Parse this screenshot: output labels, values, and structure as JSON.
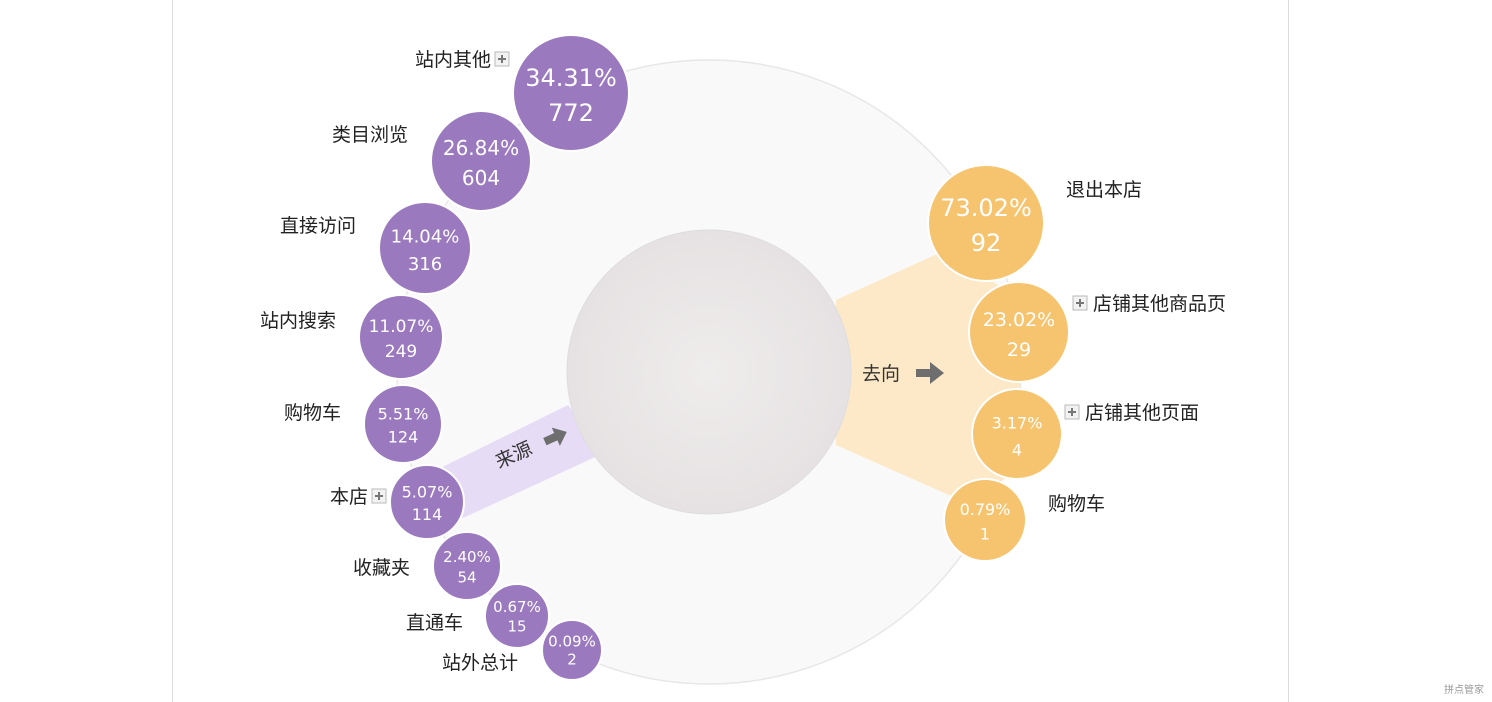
{
  "chart_data": {
    "type": "bubble-flow",
    "center_label": "",
    "sources": {
      "arrow_label": "来源",
      "color": "#9b79bf",
      "band_color": "#e7dcf6",
      "items": [
        {
          "name": "站内其他",
          "percent": "34.31%",
          "count": "772",
          "value": 34.31,
          "expandable": true
        },
        {
          "name": "类目浏览",
          "percent": "26.84%",
          "count": "604",
          "value": 26.84,
          "expandable": false
        },
        {
          "name": "直接访问",
          "percent": "14.04%",
          "count": "316",
          "value": 14.04,
          "expandable": false
        },
        {
          "name": "站内搜索",
          "percent": "11.07%",
          "count": "249",
          "value": 11.07,
          "expandable": false
        },
        {
          "name": "购物车",
          "percent": "5.51%",
          "count": "124",
          "value": 5.51,
          "expandable": false
        },
        {
          "name": "本店",
          "percent": "5.07%",
          "count": "114",
          "value": 5.07,
          "expandable": true
        },
        {
          "name": "收藏夹",
          "percent": "2.40%",
          "count": "54",
          "value": 2.4,
          "expandable": false
        },
        {
          "name": "直通车",
          "percent": "0.67%",
          "count": "15",
          "value": 0.67,
          "expandable": false
        },
        {
          "name": "站外总计",
          "percent": "0.09%",
          "count": "2",
          "value": 0.09,
          "expandable": false
        }
      ]
    },
    "destinations": {
      "arrow_label": "去向",
      "color": "#f6c46e",
      "band_color": "#fde9c7",
      "items": [
        {
          "name": "退出本店",
          "percent": "73.02%",
          "count": "92",
          "value": 73.02,
          "expandable": false
        },
        {
          "name": "店铺其他商品页",
          "percent": "23.02%",
          "count": "29",
          "value": 23.02,
          "expandable": true
        },
        {
          "name": "店铺其他页面",
          "percent": "3.17%",
          "count": "4",
          "value": 3.17,
          "expandable": true
        },
        {
          "name": "购物车",
          "percent": "0.79%",
          "count": "1",
          "value": 0.79,
          "expandable": false
        }
      ]
    }
  },
  "watermark": "拼点管家"
}
